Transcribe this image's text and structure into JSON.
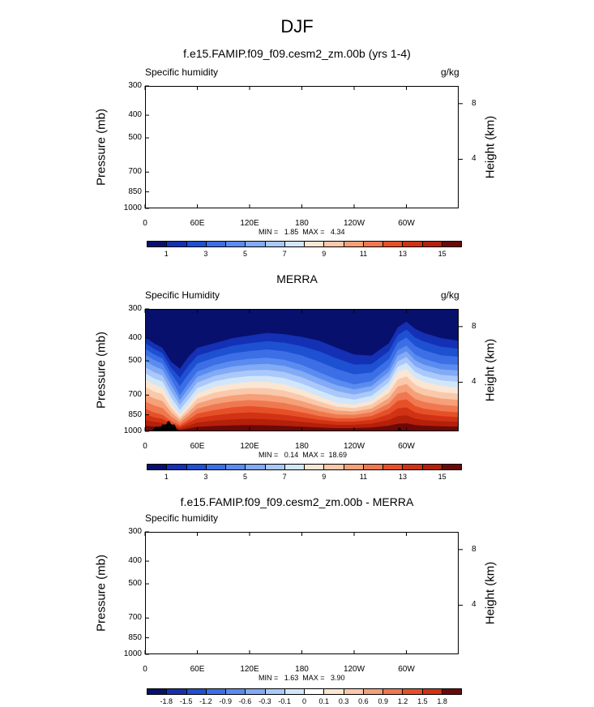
{
  "title": "DJF",
  "colors": {
    "ticks": "#000000"
  },
  "panels": [
    {
      "title": "f.e15.FAMIP.f09_f09.cesm2_zm.00b (yrs 1-4)",
      "left_label": "Specific humidity",
      "right_label": "g/kg",
      "min_max": "MIN =   1.85  MAX =   4.34",
      "colorbar_labels": [
        "1",
        "3",
        "5",
        "7",
        "9",
        "11",
        "13",
        "15"
      ]
    },
    {
      "title": "MERRA",
      "left_label": "Specific Humidity",
      "right_label": "g/kg",
      "min_max": "MIN =   0.14  MAX =  18.69",
      "colorbar_labels": [
        "1",
        "3",
        "5",
        "7",
        "9",
        "11",
        "13",
        "15"
      ]
    },
    {
      "title": "f.e15.FAMIP.f09_f09.cesm2_zm.00b - MERRA",
      "left_label": "Specific humidity",
      "right_label": "",
      "min_max": "MIN =   1.63  MAX =   3.90",
      "colorbar_labels": [
        "-1.8",
        "-1.5",
        "-1.2",
        "-0.9",
        "-0.6",
        "-0.3",
        "-0.1",
        "0",
        "0.1",
        "0.3",
        "0.6",
        "0.9",
        "1.2",
        "1.5",
        "1.8"
      ]
    }
  ],
  "axes": {
    "y_title": "Pressure (mb)",
    "right_title": "Height (km)",
    "y_ticks": [
      "300",
      "400",
      "500",
      "700",
      "850",
      "1000"
    ],
    "x_ticks": [
      "0",
      "60E",
      "120E",
      "180",
      "120W",
      "60W"
    ],
    "height_ticks": [
      "8",
      "4"
    ]
  },
  "chart_data": [
    {
      "type": "heatmap",
      "title": "f.e15.FAMIP.f09_f09.cesm2_zm.00b (yrs 1-4)",
      "xlabel": "",
      "ylabel": "Pressure (mb)",
      "right_axis_label": "Height (km)",
      "x_ticks": [
        "0",
        "60E",
        "120E",
        "180",
        "120W",
        "60W"
      ],
      "y_ticks": [
        300,
        400,
        500,
        700,
        850,
        1000
      ],
      "y_scale": "log",
      "ylim": [
        1000,
        300
      ],
      "xlim_deg_east": [
        0,
        360
      ],
      "min": 1.85,
      "max": 4.34,
      "units": "g/kg",
      "colorbar_levels": [
        0,
        1,
        2,
        3,
        4,
        5,
        6,
        7,
        8,
        9,
        10,
        11,
        12,
        13,
        14,
        15,
        16
      ],
      "colorbar_colors": [
        "#08106e",
        "#1430b4",
        "#1e50d2",
        "#3c6ee6",
        "#5a8cf0",
        "#82aaf5",
        "#aac8fa",
        "#d2e6fa",
        "#fae6d2",
        "#fac8aa",
        "#f5a078",
        "#f07850",
        "#e65028",
        "#d23214",
        "#b4200a",
        "#6e0808"
      ],
      "filled": false
    },
    {
      "type": "heatmap",
      "title": "MERRA",
      "xlabel": "",
      "ylabel": "Pressure (mb)",
      "right_axis_label": "Height (km)",
      "x_ticks": [
        "0",
        "60E",
        "120E",
        "180",
        "120W",
        "60W"
      ],
      "y_ticks": [
        300,
        400,
        500,
        700,
        850,
        1000
      ],
      "y_scale": "log",
      "ylim": [
        1000,
        300
      ],
      "xlim_deg_east": [
        0,
        360
      ],
      "min": 0.14,
      "max": 18.69,
      "units": "g/kg",
      "colorbar_levels": [
        0,
        1,
        2,
        3,
        4,
        5,
        6,
        7,
        8,
        9,
        10,
        11,
        12,
        13,
        14,
        15,
        16
      ],
      "colorbar_colors": [
        "#08106e",
        "#1430b4",
        "#1e50d2",
        "#3c6ee6",
        "#5a8cf0",
        "#82aaf5",
        "#aac8fa",
        "#d2e6fa",
        "#fae6d2",
        "#fac8aa",
        "#f5a078",
        "#f07850",
        "#e65028",
        "#d23214",
        "#b4200a",
        "#6e0808"
      ],
      "contour_pressure_mb": {
        "lon_deg_east": [
          0,
          10,
          20,
          30,
          40,
          50,
          60,
          80,
          100,
          120,
          140,
          160,
          180,
          200,
          220,
          240,
          260,
          280,
          290,
          300,
          310,
          320,
          340,
          360
        ],
        "q_1": [
          395,
          420,
          440,
          505,
          540,
          480,
          440,
          420,
          400,
          390,
          380,
          385,
          395,
          410,
          440,
          470,
          475,
          420,
          360,
          340,
          365,
          380,
          400,
          410
        ],
        "q_4": [
          470,
          495,
          515,
          600,
          700,
          620,
          555,
          520,
          500,
          490,
          485,
          495,
          520,
          560,
          600,
          630,
          610,
          530,
          450,
          430,
          470,
          490,
          515,
          520
        ],
        "q_8": [
          600,
          630,
          650,
          760,
          850,
          770,
          690,
          645,
          625,
          615,
          615,
          630,
          665,
          710,
          755,
          770,
          740,
          650,
          560,
          540,
          590,
          615,
          640,
          650
        ],
        "q_12": [
          800,
          830,
          850,
          905,
          940,
          890,
          840,
          810,
          790,
          780,
          790,
          805,
          830,
          860,
          880,
          880,
          860,
          800,
          740,
          730,
          780,
          800,
          820,
          830
        ]
      },
      "topography_masked": true
    },
    {
      "type": "heatmap",
      "title": "f.e15.FAMIP.f09_f09.cesm2_zm.00b - MERRA",
      "xlabel": "",
      "ylabel": "Pressure (mb)",
      "right_axis_label": "Height (km)",
      "x_ticks": [
        "0",
        "60E",
        "120E",
        "180",
        "120W",
        "60W"
      ],
      "y_ticks": [
        300,
        400,
        500,
        700,
        850,
        1000
      ],
      "y_scale": "log",
      "ylim": [
        1000,
        300
      ],
      "xlim_deg_east": [
        0,
        360
      ],
      "min": 1.63,
      "max": 3.9,
      "colorbar_levels": [
        -1.8,
        -1.5,
        -1.2,
        -0.9,
        -0.6,
        -0.3,
        -0.1,
        0,
        0.1,
        0.3,
        0.6,
        0.9,
        1.2,
        1.5,
        1.8
      ],
      "colorbar_colors": [
        "#08106e",
        "#1430b4",
        "#1e50d2",
        "#3c6ee6",
        "#5a8cf0",
        "#82aaf5",
        "#aac8fa",
        "#d2e6fa",
        "#ffffff",
        "#fae6d2",
        "#fac8aa",
        "#f5a078",
        "#f07850",
        "#e65028",
        "#d23214",
        "#6e0808"
      ],
      "filled": false
    }
  ]
}
